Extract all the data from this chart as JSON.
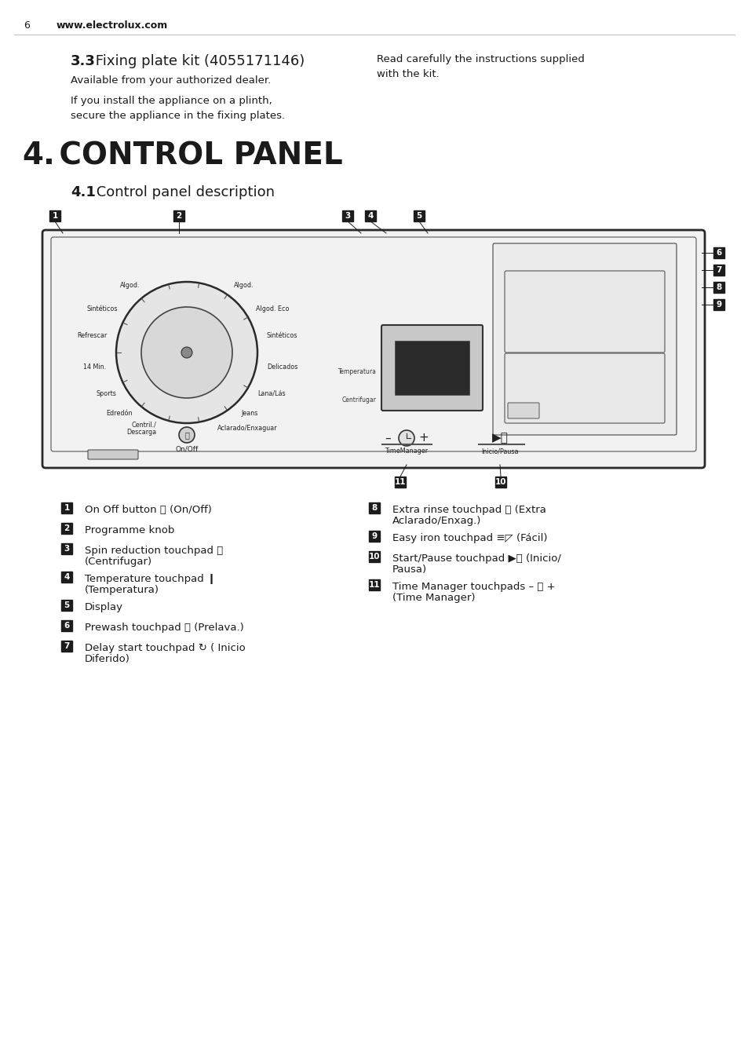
{
  "page_num": "6",
  "website": "www.electrolux.com",
  "section_3_3_bold": "3.3",
  "section_3_3_title": " Fixing plate kit (4055171146)",
  "section_3_3_text1": "Available from your authorized dealer.",
  "section_3_3_text2": "If you install the appliance on a plinth,\nsecure the appliance in the fixing plates.",
  "section_3_3_right": "Read carefully the instructions supplied\nwith the kit.",
  "section_4_bold": "4.",
  "section_4_title": " CONTROL PANEL",
  "section_4_1_bold": "4.1",
  "section_4_1_title": " Control panel description",
  "legend_left": [
    {
      "num": "1",
      "text1": "On Off button ⓞ (On/Off)",
      "text2": ""
    },
    {
      "num": "2",
      "text1": "Programme knob",
      "text2": ""
    },
    {
      "num": "3",
      "text1": "Spin reduction touchpad ⓖ",
      "text2": "(Centrifugar)"
    },
    {
      "num": "4",
      "text1": "Temperature touchpad ❙",
      "text2": "(Temperatura)"
    },
    {
      "num": "5",
      "text1": "Display",
      "text2": ""
    },
    {
      "num": "6",
      "text1": "Prewash touchpad ⎉ (Prelava.)",
      "text2": ""
    },
    {
      "num": "7",
      "text1": "Delay start touchpad ↻ ( Inicio",
      "text2": "Diferido)"
    }
  ],
  "legend_right": [
    {
      "num": "8",
      "text1": "Extra rinse touchpad ⎕ (Extra",
      "text2": "Aclarado/Enxag.)"
    },
    {
      "num": "9",
      "text1": "Easy iron touchpad ≡◸ (Fácil)",
      "text2": ""
    },
    {
      "num": "10",
      "text1": "Start/Pause touchpad ▶⏸ (Inicio/",
      "text2": "Pausa)"
    },
    {
      "num": "11",
      "text1": "Time Manager touchpads – ⓖ +",
      "text2": "(Time Manager)"
    }
  ],
  "bg_color": "#ffffff",
  "text_color": "#1a1a1a",
  "label_bg": "#1a1a1a",
  "programmes_left": [
    "Algod.",
    "Sintéticos",
    "Refrescar",
    "14 Min.",
    "Sports",
    "Edredón",
    "Centril./\nDescarga"
  ],
  "programmes_right": [
    "Algod.",
    "Algod. Eco",
    "Sintéticos",
    "Delicados",
    "Lana/Lás",
    "Jeans",
    "Aclarado/Enxaguar"
  ]
}
